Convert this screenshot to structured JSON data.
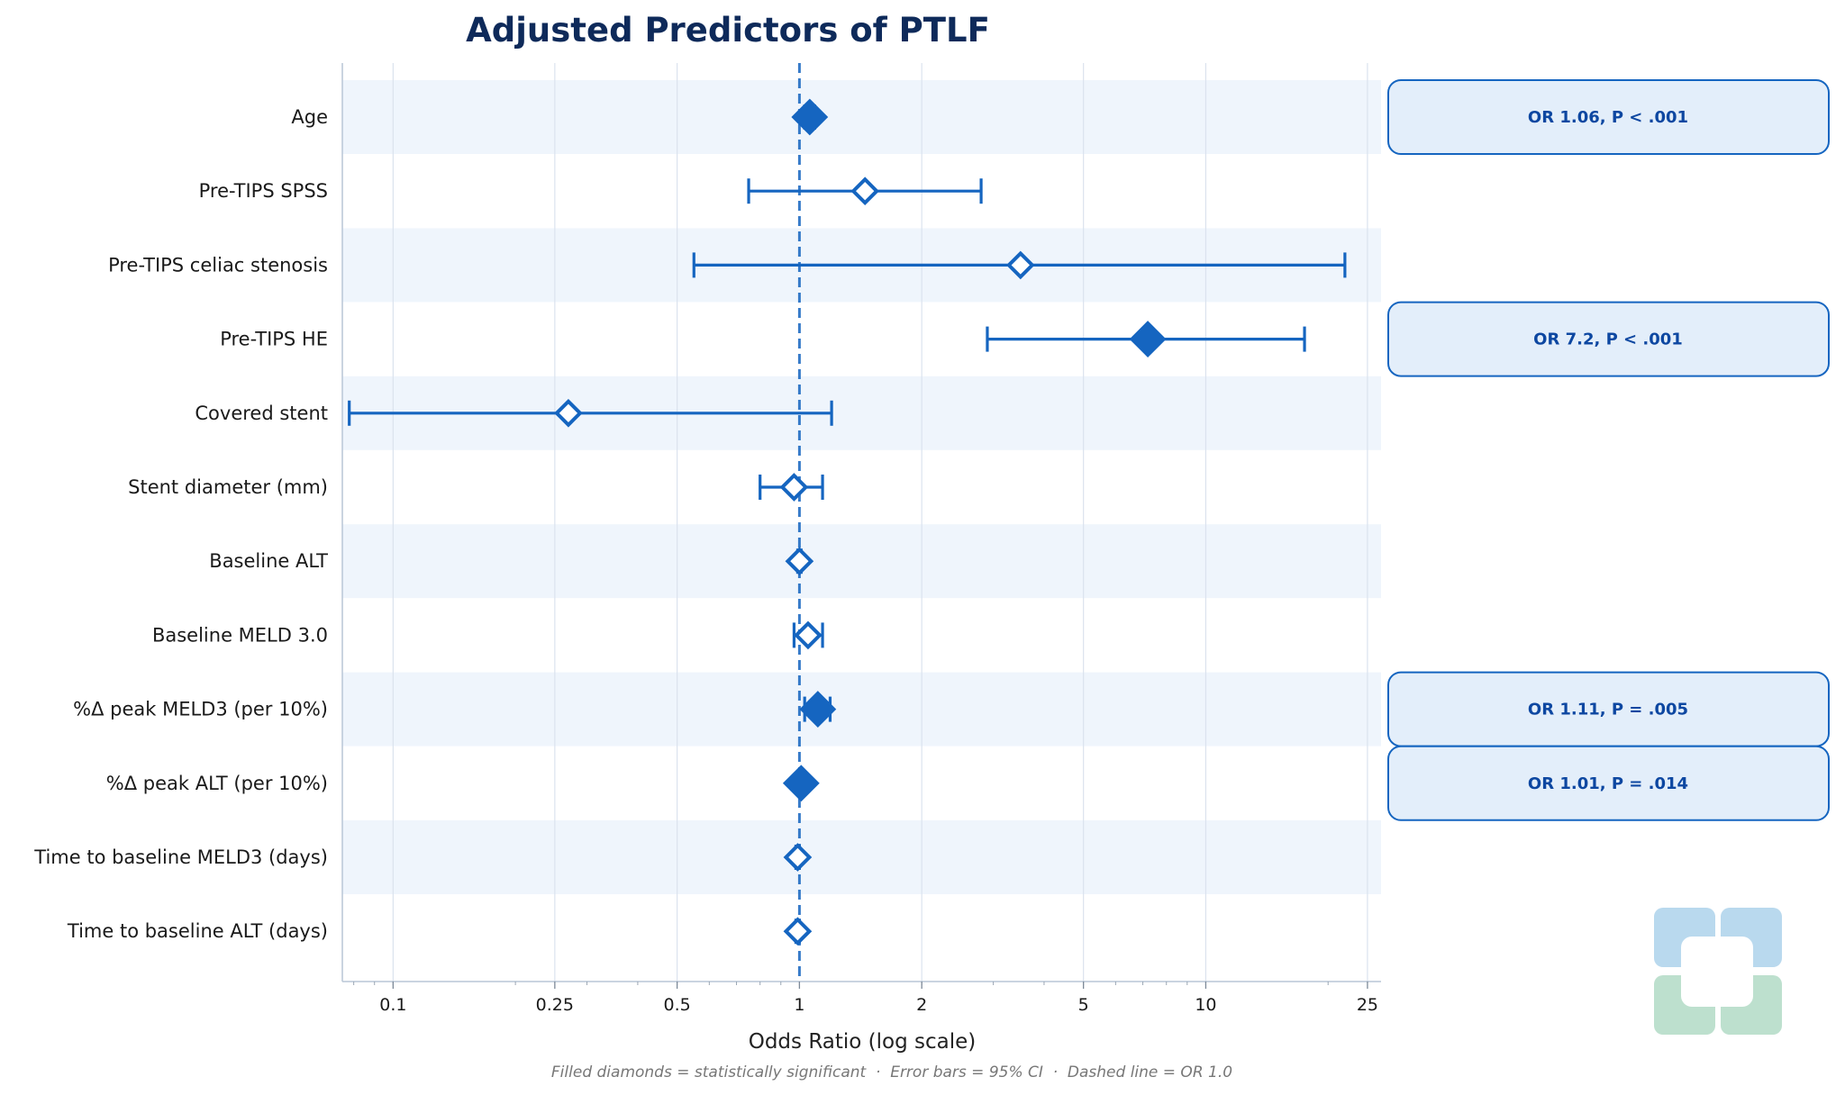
{
  "colors": {
    "accent": "#1565c0",
    "title": "#0e2a5a",
    "band": "#eff5fc",
    "annotation_fill": "#e3eefa",
    "annotation_border": "#1565c0",
    "annotation_text": "#0d47a1",
    "grid": "#dbe3ee",
    "logo_blue": "#b9d9ee",
    "logo_green": "#bde0ce"
  },
  "icons": {
    "logo": "medical-cross-logo-icon"
  },
  "chart_data": {
    "type": "forest",
    "title": "Adjusted Predictors of PTLF",
    "xlabel": "Odds Ratio (log scale)",
    "xscale": "log",
    "xlim": [
      0.075,
      27
    ],
    "xticks": [
      0.1,
      0.25,
      0.5,
      1,
      2,
      5,
      10,
      25
    ],
    "xtick_labels": [
      "0.1",
      "0.25",
      "0.5",
      "1",
      "2",
      "5",
      "10",
      "25"
    ],
    "reference_line": 1.0,
    "footnote": "Filled diamonds = statistically significant  ·  Error bars = 95% CI  ·  Dashed line = OR 1.0",
    "rows": [
      {
        "label": "Age",
        "or": 1.06,
        "ci": [
          1.03,
          1.09
        ],
        "significant": true,
        "annotation": "OR 1.06, P < .001"
      },
      {
        "label": "Pre-TIPS SPSS",
        "or": 1.45,
        "ci": [
          0.75,
          2.8
        ],
        "significant": false,
        "annotation": ""
      },
      {
        "label": "Pre-TIPS celiac stenosis",
        "or": 3.5,
        "ci": [
          0.55,
          22.0
        ],
        "significant": false,
        "annotation": ""
      },
      {
        "label": "Pre-TIPS HE",
        "or": 7.2,
        "ci": [
          2.9,
          17.5
        ],
        "significant": true,
        "annotation": "OR 7.2, P < .001"
      },
      {
        "label": "Covered stent",
        "or": 0.27,
        "ci": [
          0.078,
          1.2
        ],
        "significant": false,
        "annotation": ""
      },
      {
        "label": "Stent diameter (mm)",
        "or": 0.97,
        "ci": [
          0.8,
          1.14
        ],
        "significant": false,
        "annotation": ""
      },
      {
        "label": "Baseline ALT",
        "or": 1.0,
        "ci": [
          0.99,
          1.01
        ],
        "significant": false,
        "annotation": ""
      },
      {
        "label": "Baseline MELD 3.0",
        "or": 1.05,
        "ci": [
          0.97,
          1.14
        ],
        "significant": false,
        "annotation": ""
      },
      {
        "label": "%Δ peak MELD3 (per 10%)",
        "or": 1.11,
        "ci": [
          1.03,
          1.19
        ],
        "significant": true,
        "annotation": "OR 1.11, P = .005"
      },
      {
        "label": "%Δ peak ALT (per 10%)",
        "or": 1.01,
        "ci": [
          1.002,
          1.018
        ],
        "significant": true,
        "annotation": "OR 1.01, P = .014"
      },
      {
        "label": "Time to baseline MELD3 (days)",
        "or": 0.99,
        "ci": [
          0.98,
          1.0
        ],
        "significant": false,
        "annotation": ""
      },
      {
        "label": "Time to baseline ALT (days)",
        "or": 0.99,
        "ci": [
          0.98,
          1.0
        ],
        "significant": false,
        "annotation": ""
      }
    ]
  }
}
